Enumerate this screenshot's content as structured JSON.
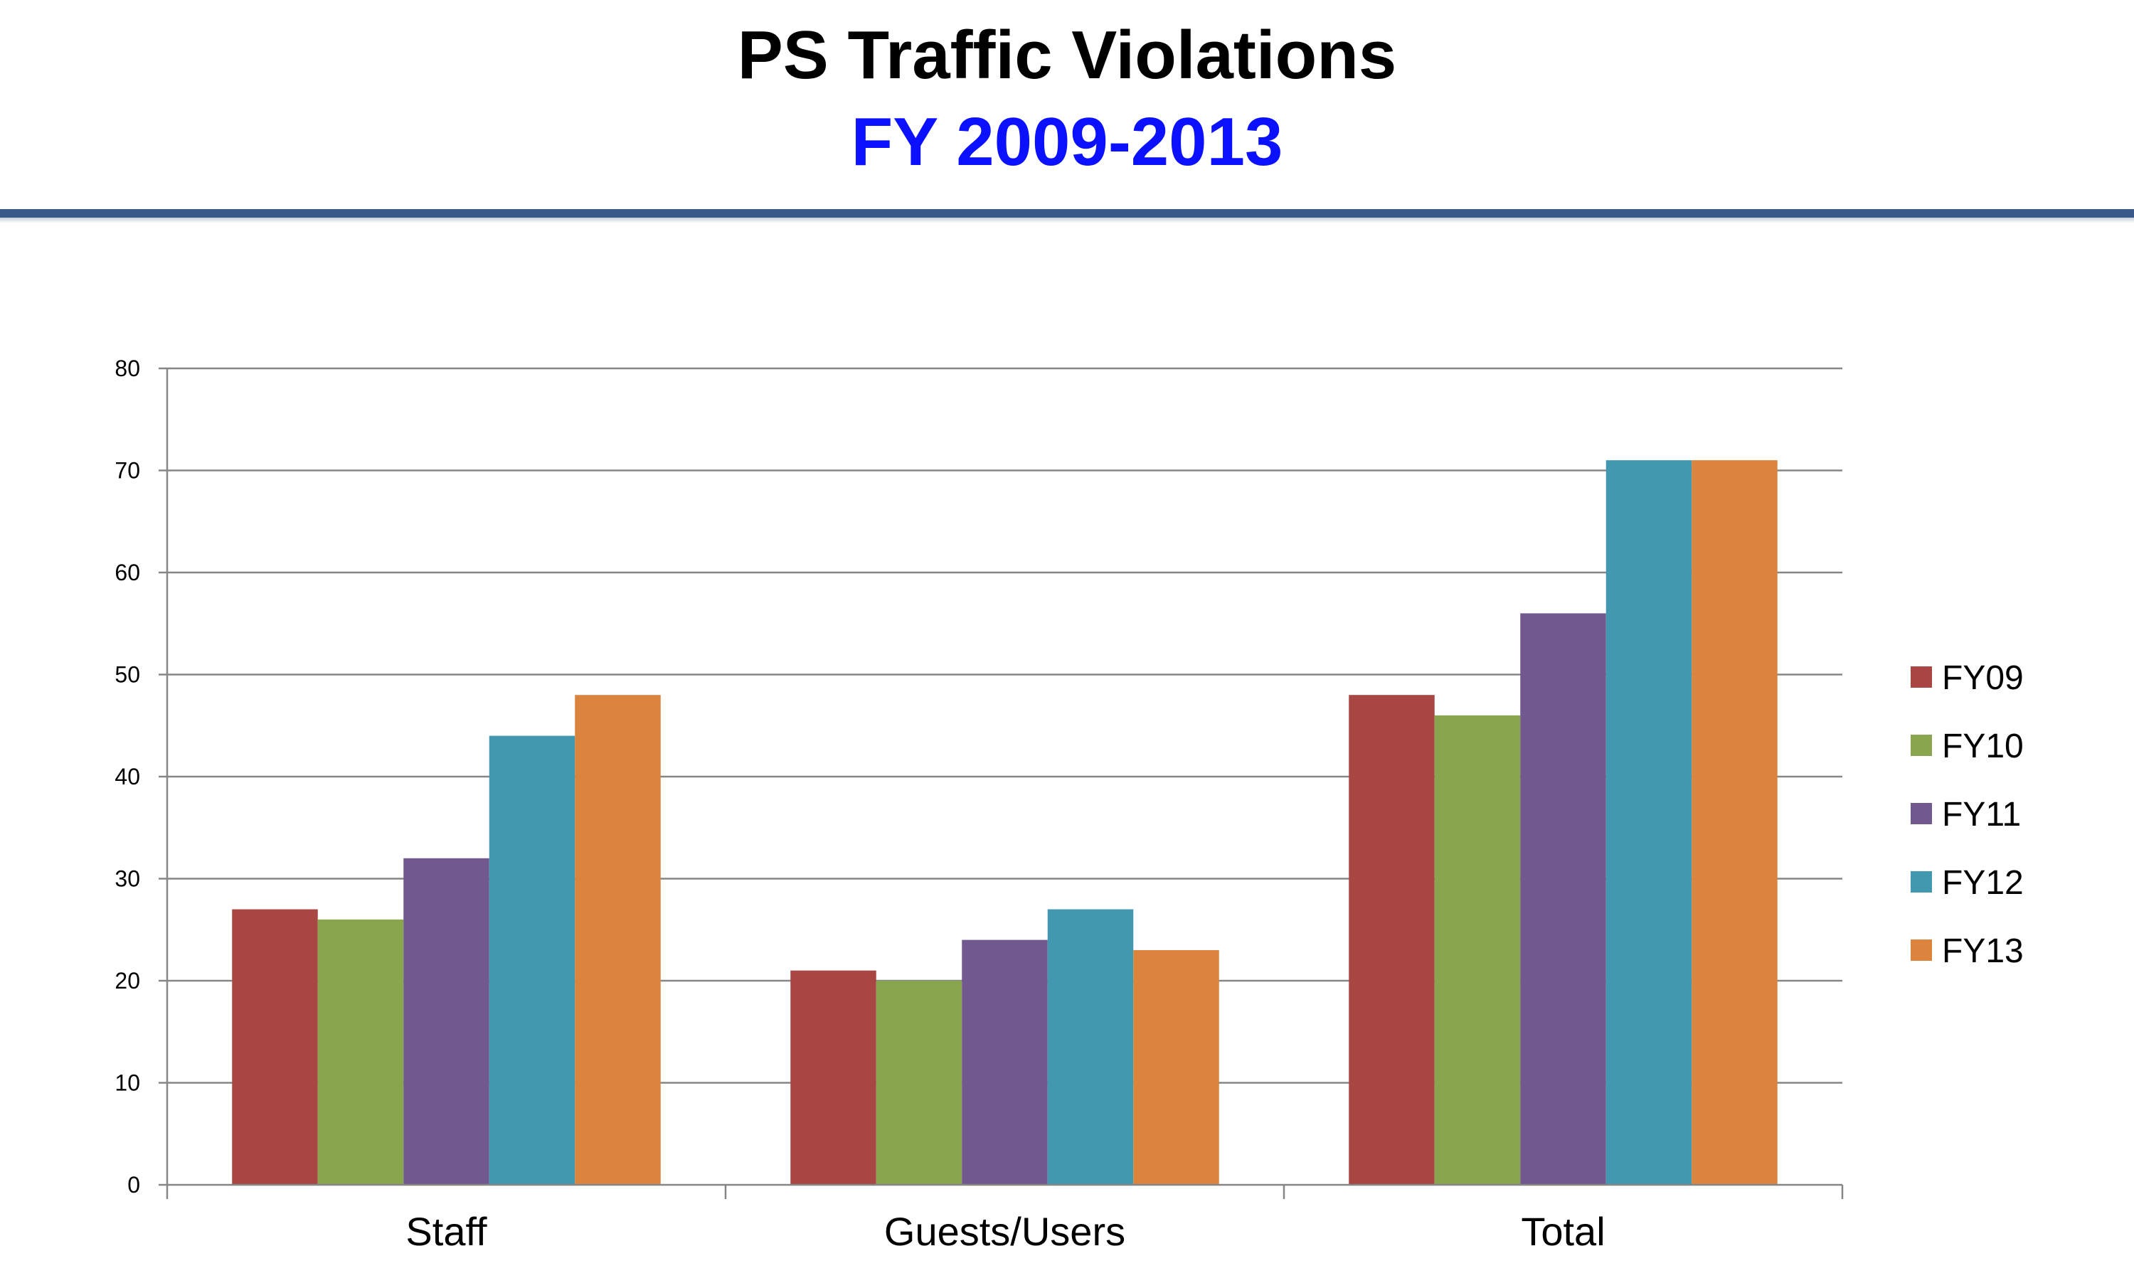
{
  "header": {
    "title": "PS Traffic Violations",
    "subtitle": "FY 2009-2013"
  },
  "colors": {
    "title": "#000000",
    "subtitle": "#0b10ff",
    "header_rule": "#3b5a8c",
    "gridline": "#868686",
    "axis": "#868686"
  },
  "chart_data": {
    "type": "bar",
    "title": "",
    "xlabel": "",
    "ylabel": "",
    "categories": [
      "Staff",
      "Guests/Users",
      "Total"
    ],
    "ylim": [
      0,
      80
    ],
    "yticks": [
      0,
      10,
      20,
      30,
      40,
      50,
      60,
      70,
      80
    ],
    "grid": true,
    "legend_position": "right",
    "series": [
      {
        "name": "FY09",
        "color": "#a84643",
        "values": [
          27,
          21,
          48
        ]
      },
      {
        "name": "FY10",
        "color": "#89a54e",
        "values": [
          26,
          20,
          46
        ]
      },
      {
        "name": "FY11",
        "color": "#71588f",
        "values": [
          32,
          24,
          56
        ]
      },
      {
        "name": "FY12",
        "color": "#4198af",
        "values": [
          44,
          27,
          71
        ]
      },
      {
        "name": "FY13",
        "color": "#db843d",
        "values": [
          48,
          23,
          71
        ]
      }
    ]
  }
}
